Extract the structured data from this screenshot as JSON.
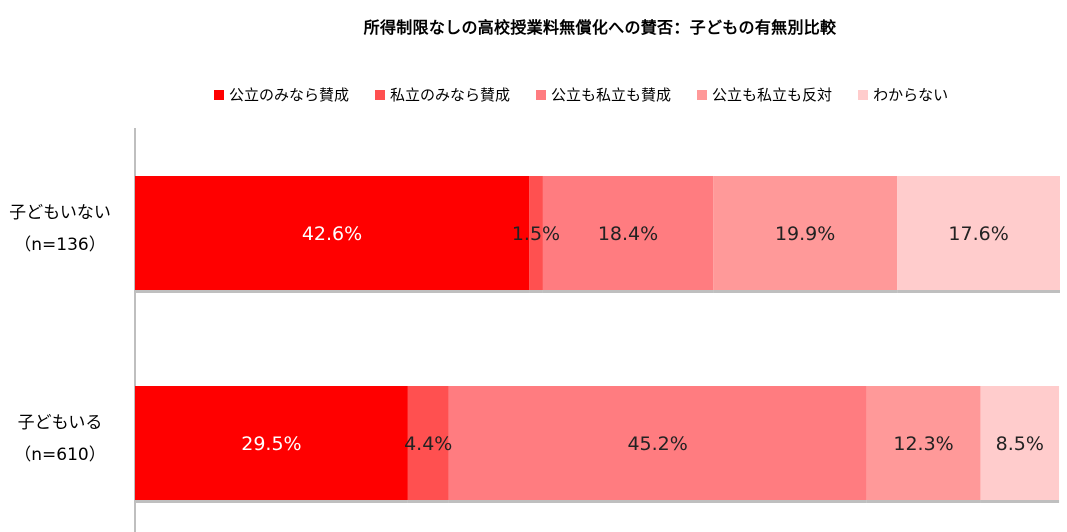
{
  "chart_data": {
    "type": "stacked_bar_horizontal",
    "title": "所得制限なしの高校授業料無償化への賛否：子どもの有無別比較",
    "unit": "%",
    "xlim": [
      0,
      100
    ],
    "legend_position": "top",
    "grid": false,
    "categories": [
      {
        "name": "子どもいない",
        "n": "（n=136）"
      },
      {
        "name": "子どもいる",
        "n": "（n=610）"
      }
    ],
    "series": [
      {
        "name": "公立のみなら賛成",
        "color": "#FF0000",
        "text_color": "#FFFFFF",
        "values": [
          42.6,
          29.5
        ],
        "labels": [
          "42.6%",
          "29.5%"
        ]
      },
      {
        "name": "私立のみなら賛成",
        "color": "#FF5050",
        "text_color": "#222222",
        "values": [
          1.5,
          4.4
        ],
        "labels": [
          "1.5%",
          "4.4%"
        ]
      },
      {
        "name": "公立も私立も賛成",
        "color": "#FF7C80",
        "text_color": "#222222",
        "values": [
          18.4,
          45.2
        ],
        "labels": [
          "18.4%",
          "45.2%"
        ]
      },
      {
        "name": "公立も私立も反対",
        "color": "#FF9999",
        "text_color": "#222222",
        "values": [
          19.9,
          12.3
        ],
        "labels": [
          "19.9%",
          "12.3%"
        ]
      },
      {
        "name": "わからない",
        "color": "#FFCCCC",
        "text_color": "#222222",
        "values": [
          17.6,
          8.5
        ],
        "labels": [
          "17.6%",
          "8.5%"
        ]
      }
    ]
  }
}
